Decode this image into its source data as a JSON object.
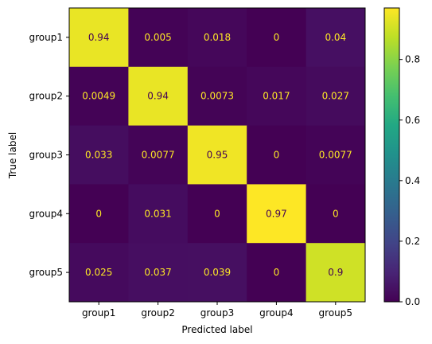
{
  "chart_data": {
    "type": "heatmap",
    "title": "",
    "xlabel": "Predicted label",
    "ylabel": "True label",
    "x_categories": [
      "group1",
      "group2",
      "group3",
      "group4",
      "group5"
    ],
    "y_categories": [
      "group1",
      "group2",
      "group3",
      "group4",
      "group5"
    ],
    "matrix": [
      [
        0.94,
        0.005,
        0.018,
        0,
        0.04
      ],
      [
        0.0049,
        0.94,
        0.0073,
        0.017,
        0.027
      ],
      [
        0.033,
        0.0077,
        0.95,
        0,
        0.0077
      ],
      [
        0,
        0.031,
        0,
        0.97,
        0
      ],
      [
        0.025,
        0.037,
        0.039,
        0,
        0.9
      ]
    ],
    "cell_labels": [
      [
        "0.94",
        "0.005",
        "0.018",
        "0",
        "0.04"
      ],
      [
        "0.0049",
        "0.94",
        "0.0073",
        "0.017",
        "0.027"
      ],
      [
        "0.033",
        "0.0077",
        "0.95",
        "0",
        "0.0077"
      ],
      [
        "0",
        "0.031",
        "0",
        "0.97",
        "0"
      ],
      [
        "0.025",
        "0.037",
        "0.039",
        "0",
        "0.9"
      ]
    ],
    "colormap": "viridis",
    "value_range": [
      0,
      0.97
    ],
    "colorbar_ticks": [
      0.0,
      0.2,
      0.4,
      0.6,
      0.8
    ],
    "colorbar_tick_labels": [
      "0.0",
      "0.2",
      "0.4",
      "0.6",
      "0.8"
    ],
    "text_color_light_cells": "#440154",
    "text_color_dark_cells": "#fde725"
  }
}
